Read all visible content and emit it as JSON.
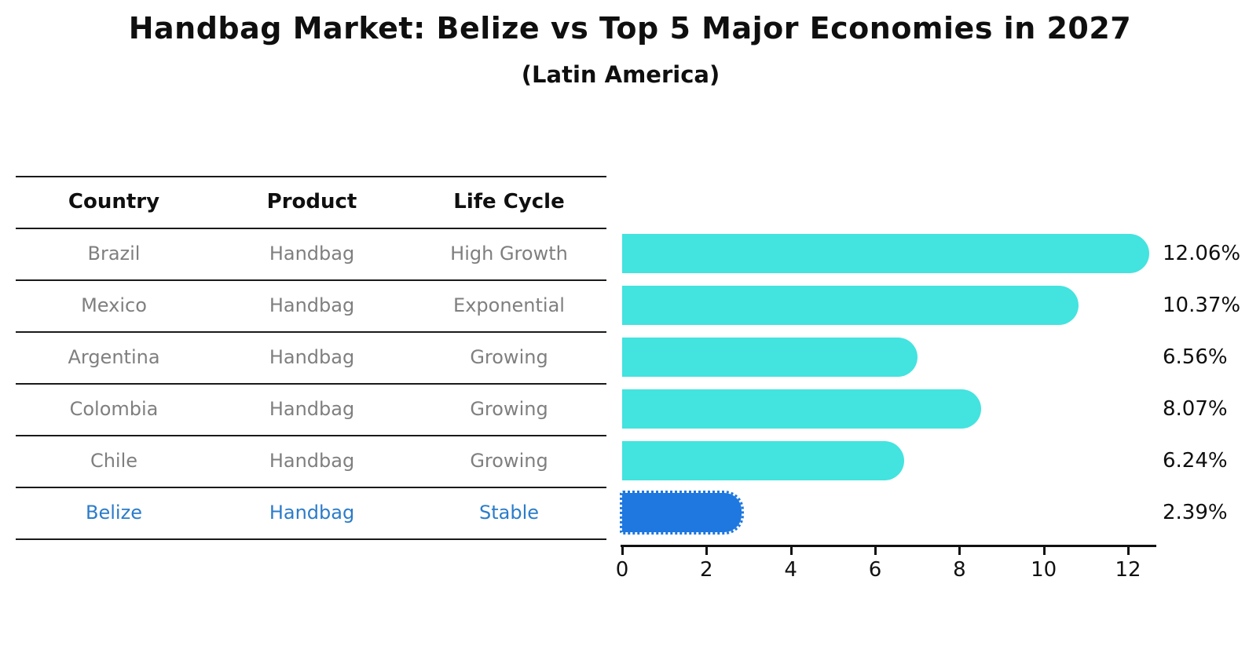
{
  "title": "Handbag Market: Belize vs Top 5 Major Economies in 2027",
  "subtitle": "(Latin America)",
  "colors": {
    "bar": "#43e3df",
    "highlight_bar": "#1e78e0",
    "highlight_text": "#2b7cc9",
    "row_text": "#7f7f7f",
    "heading_text": "#0f0f0f",
    "axis": "#111111"
  },
  "table": {
    "headers": [
      "Country",
      "Product",
      "Life Cycle"
    ],
    "rows": [
      {
        "country": "Brazil",
        "product": "Handbag",
        "life_cycle": "High Growth",
        "highlight": false
      },
      {
        "country": "Mexico",
        "product": "Handbag",
        "life_cycle": "Exponential",
        "highlight": false
      },
      {
        "country": "Argentina",
        "product": "Handbag",
        "life_cycle": "Growing",
        "highlight": false
      },
      {
        "country": "Colombia",
        "product": "Handbag",
        "life_cycle": "Growing",
        "highlight": false
      },
      {
        "country": "Chile",
        "product": "Handbag",
        "life_cycle": "Growing",
        "highlight": false
      },
      {
        "country": "Belize",
        "product": "Handbag",
        "life_cycle": "Stable",
        "highlight": true
      }
    ]
  },
  "chart_data": {
    "type": "bar",
    "orientation": "horizontal",
    "title": "Handbag Market: Belize vs Top 5 Major Economies in 2027",
    "subtitle": "(Latin America)",
    "categories": [
      "Brazil",
      "Mexico",
      "Argentina",
      "Colombia",
      "Chile",
      "Belize"
    ],
    "values": [
      12.06,
      10.37,
      6.56,
      8.07,
      6.24,
      2.39
    ],
    "value_labels": [
      "12.06%",
      "10.37%",
      "6.56%",
      "8.07%",
      "6.24%",
      "2.39%"
    ],
    "highlight_index": 5,
    "xlabel": "",
    "ylabel": "",
    "xlim": [
      0,
      12.7
    ],
    "xticks": [
      0,
      2,
      4,
      6,
      8,
      10,
      12
    ],
    "grid": false,
    "legend": false,
    "bar_color": "#43e3df",
    "highlight_bar_color": "#1e78e0"
  }
}
